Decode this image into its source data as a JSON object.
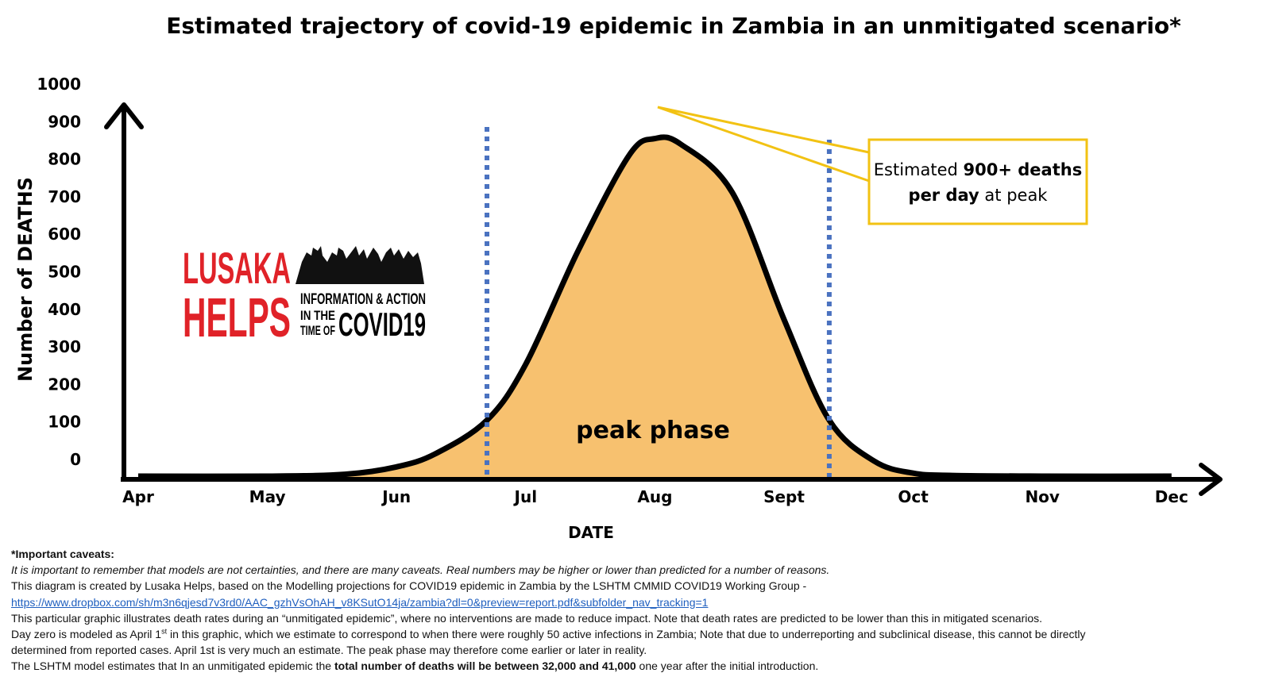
{
  "chart_data": {
    "type": "area",
    "title": "Estimated trajectory of covid-19 epidemic in Zambia in an unmitigated scenario*",
    "xlabel": "DATE",
    "ylabel": "Number of DEATHS",
    "ylim": [
      0,
      1000
    ],
    "y_ticks": [
      "1000",
      "900",
      "800",
      "700",
      "600",
      "500",
      "400",
      "300",
      "200",
      "100",
      "0"
    ],
    "categories": [
      "Apr",
      "May",
      "Jun",
      "Jul",
      "Aug",
      "Sept",
      "Oct",
      "Nov",
      "Dec"
    ],
    "series": [
      {
        "name": "Estimated deaths per day",
        "x": [
          0,
          1,
          1.6,
          2,
          2.3,
          2.7,
          3,
          3.4,
          3.8,
          4,
          4.2,
          4.6,
          5,
          5.35,
          5.7,
          6,
          6.3,
          7,
          8
        ],
        "values": [
          0,
          0,
          5,
          25,
          60,
          150,
          300,
          600,
          860,
          905,
          890,
          760,
          420,
          150,
          40,
          8,
          2,
          0,
          0
        ]
      }
    ],
    "peak_phase": {
      "start": 2.7,
      "end": 5.35,
      "label": "peak phase"
    },
    "annotation": {
      "pre": "Estimated ",
      "bold1": "900+ deaths",
      "bold2": "per day",
      "post": " at peak"
    },
    "grid": false,
    "legend": "none"
  },
  "logo": {
    "line1": "LUSAKA",
    "line2": "HELPS",
    "tag1": "INFORMATION & ACTION",
    "tag2": "IN THE",
    "tag3": "TIME OF",
    "tag4": "COVID19"
  },
  "colors": {
    "fill": "#f7c16f",
    "curve": "#000000",
    "dotted": "#4a72c0",
    "callout": "#f2c213",
    "logo_red": "#e02228"
  },
  "caveats": {
    "header": "*Important caveats:",
    "italic": "It is important to remember that models are not certainties, and there are many caveats. Real numbers may be higher or lower than predicted for a number of reasons.",
    "line2": "This diagram is created by Lusaka Helps, based on the Modelling projections for COVID19 epidemic in Zambia by the LSHTM CMMID COVID19 Working Group -",
    "link": "https://www.dropbox.com/sh/m3n6qjesd7v3rd0/AAC_gzhVsOhAH_v8KSutO14ja/zambia?dl=0&preview=report.pdf&subfolder_nav_tracking=1",
    "line4": "This particular graphic illustrates death rates during an “unmitigated epidemic”, where no interventions are made to reduce impact. Note that death rates are predicted to be lower than this in mitigated scenarios.",
    "line5a": "Day zero is modeled as April 1",
    "line5sup": "st",
    "line5b": " in this graphic, which we estimate to correspond to when there were roughly 50 active infections in Zambia;  Note that due to underreporting and subclinical disease, this cannot be directly",
    "line6": "determined from reported cases. April 1st is very much an estimate. The peak phase may therefore come earlier or later in reality.",
    "line7a": "The LSHTM model estimates that In an unmitigated epidemic the ",
    "line7b": "total number of deaths will be between 32,000 and 41,000",
    "line7c": " one year after the initial introduction."
  }
}
